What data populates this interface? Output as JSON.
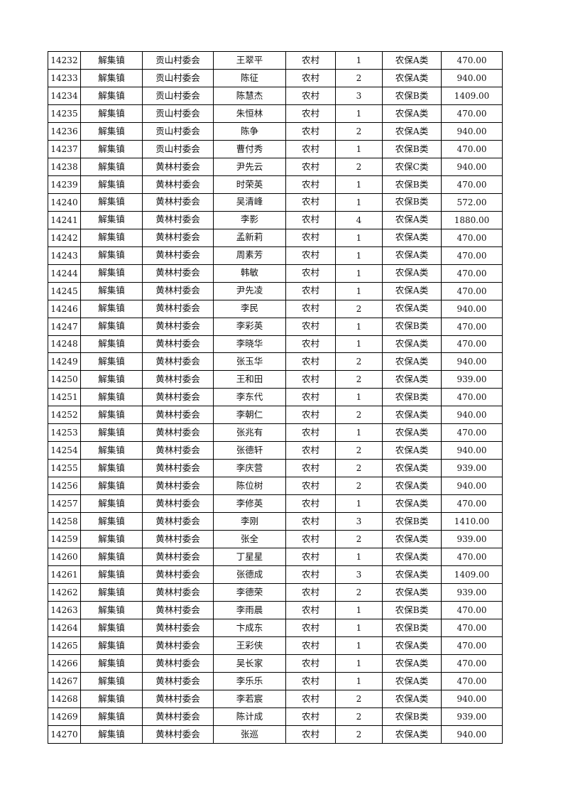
{
  "table": {
    "rows": [
      [
        "14232",
        "解集镇",
        "贡山村委会",
        "王翠平",
        "农村",
        "1",
        "农保A类",
        "470.00"
      ],
      [
        "14233",
        "解集镇",
        "贡山村委会",
        "陈征",
        "农村",
        "2",
        "农保A类",
        "940.00"
      ],
      [
        "14234",
        "解集镇",
        "贡山村委会",
        "陈慧杰",
        "农村",
        "3",
        "农保B类",
        "1409.00"
      ],
      [
        "14235",
        "解集镇",
        "贡山村委会",
        "朱恒林",
        "农村",
        "1",
        "农保A类",
        "470.00"
      ],
      [
        "14236",
        "解集镇",
        "贡山村委会",
        "陈争",
        "农村",
        "2",
        "农保A类",
        "940.00"
      ],
      [
        "14237",
        "解集镇",
        "贡山村委会",
        "曹付秀",
        "农村",
        "1",
        "农保B类",
        "470.00"
      ],
      [
        "14238",
        "解集镇",
        "黄林村委会",
        "尹先云",
        "农村",
        "2",
        "农保C类",
        "940.00"
      ],
      [
        "14239",
        "解集镇",
        "黄林村委会",
        "时荣英",
        "农村",
        "1",
        "农保B类",
        "470.00"
      ],
      [
        "14240",
        "解集镇",
        "黄林村委会",
        "吴清峰",
        "农村",
        "1",
        "农保B类",
        "572.00"
      ],
      [
        "14241",
        "解集镇",
        "黄林村委会",
        "李影",
        "农村",
        "4",
        "农保A类",
        "1880.00"
      ],
      [
        "14242",
        "解集镇",
        "黄林村委会",
        "孟新莉",
        "农村",
        "1",
        "农保A类",
        "470.00"
      ],
      [
        "14243",
        "解集镇",
        "黄林村委会",
        "周素芳",
        "农村",
        "1",
        "农保A类",
        "470.00"
      ],
      [
        "14244",
        "解集镇",
        "黄林村委会",
        "韩敏",
        "农村",
        "1",
        "农保A类",
        "470.00"
      ],
      [
        "14245",
        "解集镇",
        "黄林村委会",
        "尹先凌",
        "农村",
        "1",
        "农保A类",
        "470.00"
      ],
      [
        "14246",
        "解集镇",
        "黄林村委会",
        "李民",
        "农村",
        "2",
        "农保A类",
        "940.00"
      ],
      [
        "14247",
        "解集镇",
        "黄林村委会",
        "李彩英",
        "农村",
        "1",
        "农保B类",
        "470.00"
      ],
      [
        "14248",
        "解集镇",
        "黄林村委会",
        "李晓华",
        "农村",
        "1",
        "农保A类",
        "470.00"
      ],
      [
        "14249",
        "解集镇",
        "黄林村委会",
        "张玉华",
        "农村",
        "2",
        "农保A类",
        "940.00"
      ],
      [
        "14250",
        "解集镇",
        "黄林村委会",
        "王和田",
        "农村",
        "2",
        "农保A类",
        "939.00"
      ],
      [
        "14251",
        "解集镇",
        "黄林村委会",
        "李东代",
        "农村",
        "1",
        "农保B类",
        "470.00"
      ],
      [
        "14252",
        "解集镇",
        "黄林村委会",
        "李朝仁",
        "农村",
        "2",
        "农保A类",
        "940.00"
      ],
      [
        "14253",
        "解集镇",
        "黄林村委会",
        "张兆有",
        "农村",
        "1",
        "农保A类",
        "470.00"
      ],
      [
        "14254",
        "解集镇",
        "黄林村委会",
        "张德轩",
        "农村",
        "2",
        "农保A类",
        "940.00"
      ],
      [
        "14255",
        "解集镇",
        "黄林村委会",
        "李庆营",
        "农村",
        "2",
        "农保A类",
        "939.00"
      ],
      [
        "14256",
        "解集镇",
        "黄林村委会",
        "陈位树",
        "农村",
        "2",
        "农保A类",
        "940.00"
      ],
      [
        "14257",
        "解集镇",
        "黄林村委会",
        "李修英",
        "农村",
        "1",
        "农保A类",
        "470.00"
      ],
      [
        "14258",
        "解集镇",
        "黄林村委会",
        "李刚",
        "农村",
        "3",
        "农保B类",
        "1410.00"
      ],
      [
        "14259",
        "解集镇",
        "黄林村委会",
        "张全",
        "农村",
        "2",
        "农保A类",
        "939.00"
      ],
      [
        "14260",
        "解集镇",
        "黄林村委会",
        "丁星星",
        "农村",
        "1",
        "农保A类",
        "470.00"
      ],
      [
        "14261",
        "解集镇",
        "黄林村委会",
        "张德成",
        "农村",
        "3",
        "农保A类",
        "1409.00"
      ],
      [
        "14262",
        "解集镇",
        "黄林村委会",
        "李德荣",
        "农村",
        "2",
        "农保A类",
        "939.00"
      ],
      [
        "14263",
        "解集镇",
        "黄林村委会",
        "李雨晨",
        "农村",
        "1",
        "农保B类",
        "470.00"
      ],
      [
        "14264",
        "解集镇",
        "黄林村委会",
        "卞成东",
        "农村",
        "1",
        "农保B类",
        "470.00"
      ],
      [
        "14265",
        "解集镇",
        "黄林村委会",
        "王彩侠",
        "农村",
        "1",
        "农保A类",
        "470.00"
      ],
      [
        "14266",
        "解集镇",
        "黄林村委会",
        "吴长家",
        "农村",
        "1",
        "农保A类",
        "470.00"
      ],
      [
        "14267",
        "解集镇",
        "黄林村委会",
        "李乐乐",
        "农村",
        "1",
        "农保A类",
        "470.00"
      ],
      [
        "14268",
        "解集镇",
        "黄林村委会",
        "李若宸",
        "农村",
        "2",
        "农保A类",
        "940.00"
      ],
      [
        "14269",
        "解集镇",
        "黄林村委会",
        "陈计成",
        "农村",
        "2",
        "农保B类",
        "939.00"
      ],
      [
        "14270",
        "解集镇",
        "黄林村委会",
        "张巡",
        "农村",
        "2",
        "农保A类",
        "940.00"
      ]
    ]
  }
}
